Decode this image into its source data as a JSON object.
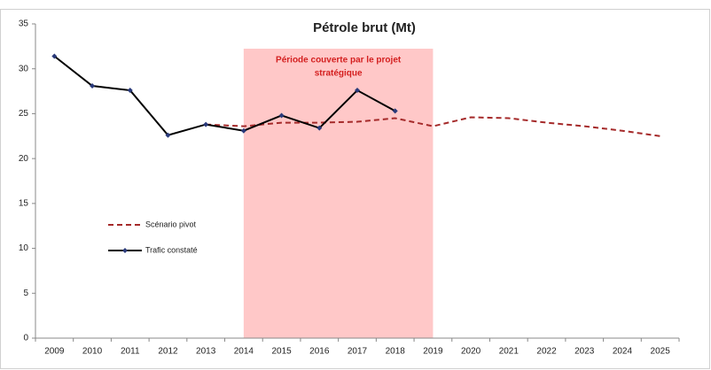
{
  "chart_data": {
    "type": "line",
    "title": "Pétrole brut (Mt)",
    "categories": [
      "2009",
      "2010",
      "2011",
      "2012",
      "2013",
      "2014",
      "2015",
      "2016",
      "2017",
      "2018",
      "2019",
      "2020",
      "2021",
      "2022",
      "2023",
      "2024",
      "2025"
    ],
    "series": [
      {
        "name": "Scénario pivot",
        "color": "#a52a2a",
        "dashed": true,
        "values": [
          null,
          null,
          null,
          null,
          23.8,
          23.6,
          24.0,
          24.0,
          24.1,
          24.5,
          23.6,
          24.6,
          24.5,
          24.0,
          23.6,
          23.1,
          22.5
        ]
      },
      {
        "name": "Trafic constaté",
        "color": "#000000",
        "markers": true,
        "values": [
          31.4,
          28.1,
          27.6,
          22.6,
          23.8,
          23.1,
          24.8,
          23.4,
          27.6,
          25.3,
          null,
          null,
          null,
          null,
          null,
          null,
          null
        ]
      }
    ],
    "highlight": {
      "start": "2014",
      "end": "2019",
      "color": "#ffc8c8",
      "label_color": "#d42020",
      "label": [
        "Période couverte par le projet",
        "stratégique"
      ]
    },
    "ylim": [
      0,
      35
    ],
    "yticks": [
      0,
      5,
      10,
      15,
      20,
      25,
      30,
      35
    ],
    "legend": "center-left",
    "grid": false
  }
}
